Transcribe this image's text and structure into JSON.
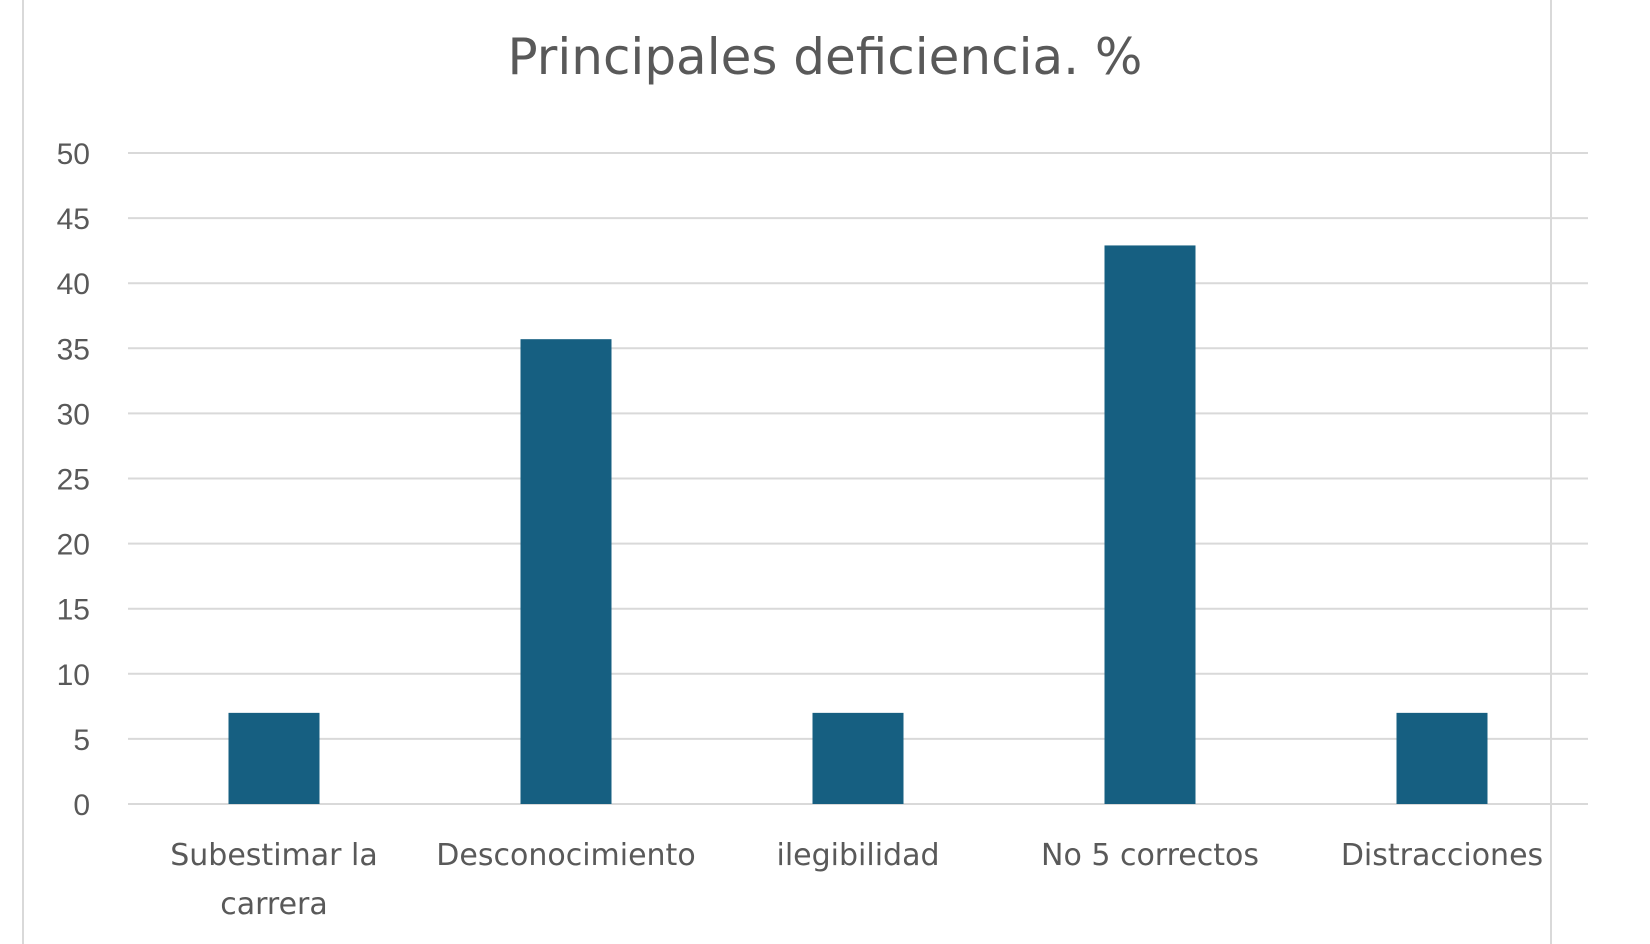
{
  "chart_data": {
    "type": "bar",
    "title": "Principales deficiencia. %",
    "categories": [
      [
        "Subestimar la",
        "carrera"
      ],
      [
        "Desconocimiento"
      ],
      [
        "ilegibilidad"
      ],
      [
        "No 5 correctos"
      ],
      [
        "Distracciones"
      ]
    ],
    "values": [
      7,
      35.7,
      7,
      42.9,
      7
    ],
    "ylim": [
      0,
      50
    ],
    "yticks": [
      0,
      5,
      10,
      15,
      20,
      25,
      30,
      35,
      40,
      45,
      50
    ],
    "grid": true,
    "colors": {
      "bar": "#165F81",
      "grid": "#d9d9d9",
      "text": "#595959"
    }
  }
}
